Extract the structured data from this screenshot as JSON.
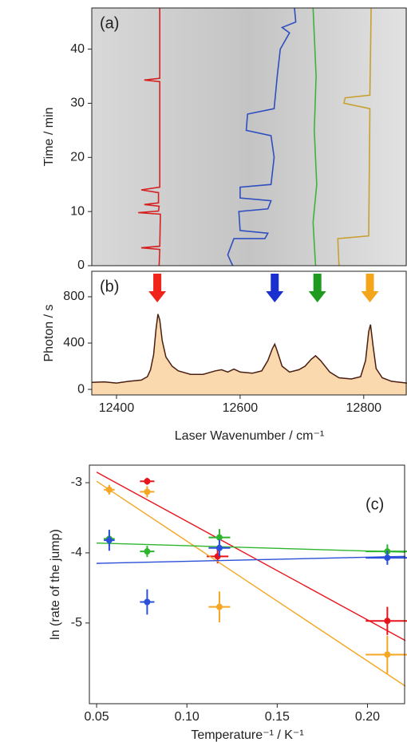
{
  "chart_data": [
    {
      "type": "line",
      "panel_label": "(a)",
      "y_label": "Time / min",
      "xlim": [
        12360,
        12870
      ],
      "ylim": [
        0,
        47.6
      ],
      "yticks": [
        0,
        10,
        20,
        30,
        40
      ],
      "series": [
        {
          "color": "#d62020",
          "x": [
            12469,
            12470,
            12440,
            12470,
            12471,
            12435,
            12468,
            12469,
            12445,
            12468,
            12468,
            12440,
            12470,
            12470,
            12445,
            12470,
            12470
          ],
          "values": [
            0,
            3,
            3.3,
            3.6,
            9.5,
            9.8,
            10.1,
            11,
            11.3,
            11.6,
            13.5,
            14,
            14.5,
            34,
            34.3,
            34.6,
            47.6
          ]
        },
        {
          "color": "#2f4fc0",
          "x": [
            12588,
            12580,
            12590,
            12640,
            12645,
            12600,
            12598,
            12645,
            12650,
            12600,
            12600,
            12650,
            12655,
            12650,
            12610,
            12612,
            12655,
            12660,
            12665,
            12680,
            12668,
            12690,
            12688
          ],
          "values": [
            0,
            2,
            5,
            5,
            6,
            6.5,
            10,
            10.5,
            12,
            12.5,
            14.5,
            15,
            20,
            24,
            25,
            28,
            29,
            35,
            40,
            43,
            44,
            45,
            47.6
          ]
        },
        {
          "color": "#3cb43c",
          "x": [
            12722,
            12718,
            12724,
            12720,
            12723,
            12718
          ],
          "values": [
            0,
            8,
            15,
            25,
            35,
            47.6
          ]
        },
        {
          "color": "#c8a030",
          "x": [
            12760,
            12758,
            12808,
            12810,
            12768,
            12770,
            12810,
            12812
          ],
          "values": [
            0,
            5,
            5.5,
            29,
            30,
            31,
            31.5,
            47.6
          ]
        }
      ]
    },
    {
      "type": "area",
      "panel_label": "(b)",
      "y_label": "Photon / s",
      "x_label": "Laser Wavenumber  / cm⁻¹",
      "xlim": [
        12360,
        12870
      ],
      "ylim": [
        -48,
        1020
      ],
      "xticks": [
        12400,
        12600,
        12800
      ],
      "yticks": [
        0,
        400,
        800
      ],
      "color": "#4a1e10",
      "fill": "#f9d9ad",
      "x": [
        12360,
        12380,
        12400,
        12420,
        12440,
        12450,
        12455,
        12460,
        12464,
        12467,
        12470,
        12474,
        12480,
        12490,
        12500,
        12520,
        12540,
        12560,
        12570,
        12580,
        12590,
        12600,
        12620,
        12635,
        12645,
        12652,
        12656,
        12660,
        12668,
        12680,
        12695,
        12705,
        12715,
        12722,
        12730,
        12745,
        12760,
        12780,
        12795,
        12803,
        12808,
        12811,
        12815,
        12820,
        12830,
        12845,
        12860,
        12870
      ],
      "values": [
        60,
        65,
        55,
        70,
        80,
        110,
        170,
        300,
        520,
        650,
        600,
        420,
        280,
        200,
        160,
        130,
        130,
        160,
        170,
        150,
        175,
        150,
        140,
        160,
        250,
        350,
        390,
        330,
        200,
        150,
        170,
        200,
        260,
        290,
        250,
        150,
        100,
        90,
        110,
        250,
        500,
        560,
        380,
        180,
        100,
        70,
        60,
        55
      ],
      "arrows": [
        {
          "x": 12466,
          "color": "#f0241a"
        },
        {
          "x": 12656,
          "color": "#1a2fd0"
        },
        {
          "x": 12725,
          "color": "#1e9a1e"
        },
        {
          "x": 12810,
          "color": "#f5a51a"
        }
      ]
    },
    {
      "type": "scatter",
      "panel_label": "(c)",
      "y_label": "ln (rate of the jump)",
      "x_label": "Temperature⁻¹ / K⁻¹",
      "xlim": [
        0.046,
        0.221
      ],
      "ylim": [
        -6.15,
        -2.75
      ],
      "xticks": [
        0.05,
        {
          "value": 0.1,
          "label": "0.10"
        },
        0.15,
        {
          "value": 0.2,
          "label": "0.20"
        }
      ],
      "yticks": [
        -5,
        -4,
        -3
      ],
      "series": [
        {
          "color": "#e8141c",
          "x": [
            0.078,
            0.117,
            0.211
          ],
          "values": [
            -2.98,
            -4.05,
            -4.97
          ],
          "xerr": [
            0.004,
            0.006,
            0.012
          ],
          "yerr": [
            0.05,
            0.1,
            0.2
          ],
          "fit_x": [
            0.05,
            0.221
          ],
          "fit_y": [
            -2.85,
            -5.25
          ]
        },
        {
          "color": "#f5a623",
          "x": [
            0.057,
            0.078,
            0.118,
            0.211
          ],
          "values": [
            -3.1,
            -3.13,
            -4.77,
            -5.45
          ],
          "xerr": [
            0.003,
            0.004,
            0.006,
            0.012
          ],
          "yerr": [
            0.07,
            0.08,
            0.22,
            0.27
          ],
          "fit_x": [
            0.05,
            0.221
          ],
          "fit_y": [
            -2.98,
            -5.9
          ]
        },
        {
          "color": "#2db52d",
          "x": [
            0.057,
            0.078,
            0.118,
            0.211
          ],
          "values": [
            -3.8,
            -3.98,
            -3.78,
            -3.98
          ],
          "xerr": [
            0.003,
            0.004,
            0.006,
            0.012
          ],
          "yerr": [
            0.1,
            0.08,
            0.12,
            0.1
          ],
          "fit_x": [
            0.05,
            0.221
          ],
          "fit_y": [
            -3.86,
            -3.99
          ]
        },
        {
          "color": "#2a4fd8",
          "x": [
            0.057,
            0.078,
            0.118,
            0.211
          ],
          "values": [
            -3.82,
            -4.7,
            -3.93,
            -4.07
          ],
          "xerr": [
            0.003,
            0.004,
            0.006,
            0.012
          ],
          "yerr": [
            0.15,
            0.18,
            0.12,
            0.1
          ],
          "fit_x": [
            0.05,
            0.221
          ],
          "fit_y": [
            -4.15,
            -4.05
          ]
        }
      ]
    }
  ]
}
